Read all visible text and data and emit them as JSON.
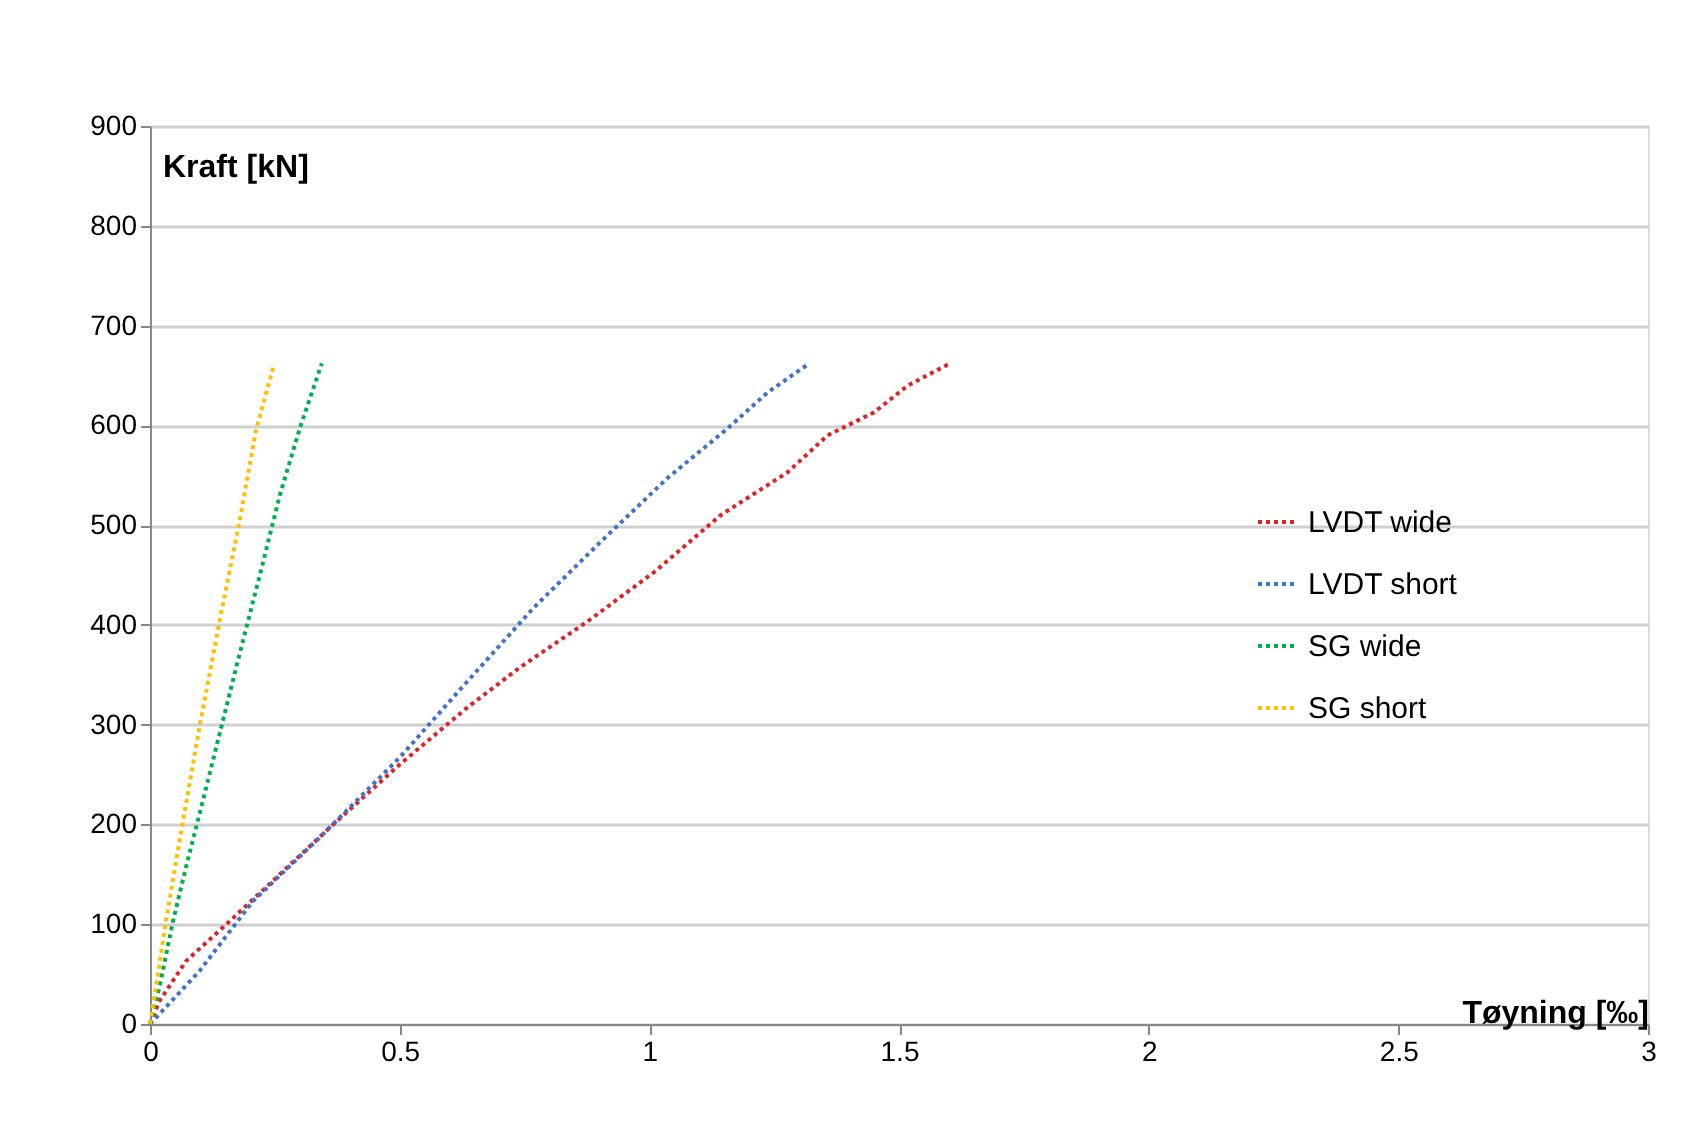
{
  "chart_data": {
    "type": "line",
    "xlabel": "Tøyning [‰]",
    "ylabel": "Kraft [kN]",
    "xlim": [
      0,
      3
    ],
    "xticks": [
      0,
      0.5,
      1,
      1.5,
      2,
      2.5,
      3
    ],
    "ylim": [
      0,
      900
    ],
    "yticks": [
      0,
      100,
      200,
      300,
      400,
      500,
      600,
      700,
      800,
      900
    ],
    "grid": "y",
    "legend": "right",
    "line_style": "dotted",
    "marker": "none",
    "series": [
      {
        "name": "LVDT wide",
        "color": "#d9262b",
        "x": [
          0,
          0.019,
          0.072,
          0.153,
          0.26,
          0.367,
          0.5,
          0.635,
          0.74,
          0.875,
          1.01,
          1.143,
          1.277,
          1.357,
          1.45,
          1.518,
          1.602
        ],
        "values": [
          0,
          23,
          63,
          100,
          150,
          200,
          260,
          317,
          357,
          403,
          453,
          510,
          553,
          590,
          613,
          640,
          662
        ]
      },
      {
        "name": "LVDT short",
        "color": "#4472c4",
        "x": [
          0,
          0.032,
          0.099,
          0.206,
          0.34,
          0.5,
          0.635,
          0.768,
          0.902,
          1.036,
          1.157,
          1.237,
          1.32
        ],
        "values": [
          0,
          17,
          53,
          123,
          187,
          267,
          343,
          417,
          483,
          547,
          597,
          633,
          662
        ]
      },
      {
        "name": "SG wide",
        "color": "#00b050",
        "x": [
          0,
          0.019,
          0.046,
          0.072,
          0.099,
          0.139,
          0.179,
          0.22,
          0.26,
          0.3,
          0.344
        ],
        "values": [
          0,
          37,
          103,
          157,
          210,
          290,
          370,
          450,
          530,
          597,
          662
        ]
      },
      {
        "name": "SG short",
        "color": "#ffc000",
        "x": [
          0,
          0.012,
          0.032,
          0.059,
          0.099,
          0.139,
          0.179,
          0.213,
          0.249
        ],
        "values": [
          0,
          37,
          103,
          183,
          297,
          403,
          503,
          597,
          662
        ]
      }
    ]
  }
}
